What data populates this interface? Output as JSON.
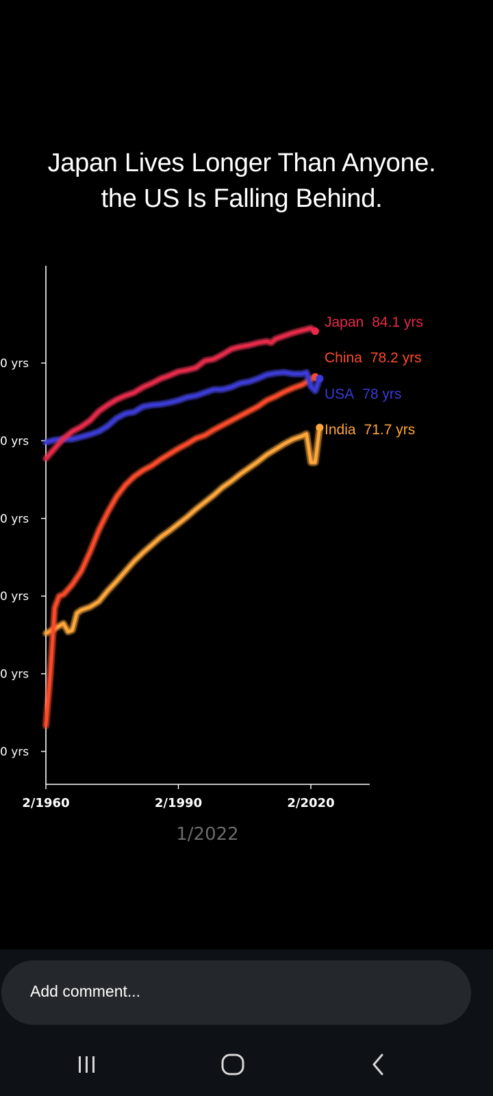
{
  "title": {
    "line1": "Japan Lives Longer Than Anyone.",
    "line2": "the US Is Falling Behind."
  },
  "date_stamp": "1/2022",
  "comment": {
    "placeholder": "Add comment..."
  },
  "nav": {
    "recents_icon": "recents-icon",
    "home_icon": "home-icon",
    "back_icon": "back-icon"
  },
  "chart_data": {
    "type": "line",
    "title": "Japan Lives Longer Than Anyone. the US Is Falling Behind.",
    "xlabel": "",
    "ylabel": "",
    "x_ticks": [
      {
        "value": 1960,
        "label": "2/1960"
      },
      {
        "value": 1990,
        "label": "2/1990"
      },
      {
        "value": 2020,
        "label": "2/2020"
      }
    ],
    "y_ticks": [
      {
        "value": 80,
        "label": "0 yrs"
      },
      {
        "value": 70,
        "label": "0 yrs"
      },
      {
        "value": 60,
        "label": "0 yrs"
      },
      {
        "value": 50,
        "label": "0 yrs"
      },
      {
        "value": 40,
        "label": "0 yrs"
      },
      {
        "value": 30,
        "label": "0 yrs"
      }
    ],
    "xlim": [
      1960,
      2032
    ],
    "ylim": [
      30,
      80
    ],
    "grid": false,
    "series": [
      {
        "name": "Japan",
        "value_label": "84.1 yrs",
        "color": "#e8294a",
        "glow": "#ff4466",
        "x": [
          1960,
          1962,
          1964,
          1966,
          1968,
          1970,
          1972,
          1974,
          1976,
          1978,
          1980,
          1982,
          1984,
          1986,
          1988,
          1990,
          1992,
          1994,
          1996,
          1998,
          2000,
          2002,
          2004,
          2006,
          2008,
          2010,
          2011,
          2012,
          2014,
          2016,
          2018,
          2020,
          2021
        ],
        "y": [
          67.7,
          69.0,
          70.3,
          71.2,
          71.8,
          72.6,
          73.8,
          74.6,
          75.3,
          75.8,
          76.2,
          76.9,
          77.4,
          78.0,
          78.4,
          78.9,
          79.1,
          79.4,
          80.3,
          80.5,
          81.1,
          81.8,
          82.1,
          82.3,
          82.6,
          82.8,
          82.6,
          83.1,
          83.5,
          83.9,
          84.2,
          84.5,
          84.1
        ]
      },
      {
        "name": "China",
        "value_label": "78.2 yrs",
        "color": "#ff4a2a",
        "glow": "#ff6a3a",
        "x": [
          1960,
          1961,
          1962,
          1963,
          1964,
          1966,
          1968,
          1970,
          1972,
          1974,
          1976,
          1978,
          1980,
          1982,
          1984,
          1986,
          1988,
          1990,
          1992,
          1994,
          1996,
          1998,
          2000,
          2002,
          2004,
          2006,
          2008,
          2010,
          2012,
          2014,
          2016,
          2018,
          2020,
          2021
        ],
        "y": [
          33.3,
          40.0,
          48.5,
          50.0,
          50.2,
          51.5,
          53.2,
          55.7,
          58.5,
          60.8,
          62.8,
          64.3,
          65.4,
          66.2,
          66.8,
          67.6,
          68.3,
          69.0,
          69.6,
          70.3,
          70.7,
          71.4,
          72.0,
          72.6,
          73.2,
          73.8,
          74.4,
          75.2,
          75.7,
          76.3,
          76.8,
          77.2,
          77.9,
          78.2
        ]
      },
      {
        "name": "USA",
        "value_label": "78 yrs",
        "color": "#3a3ad8",
        "glow": "#5a5aff",
        "x": [
          1960,
          1962,
          1964,
          1966,
          1968,
          1970,
          1972,
          1974,
          1976,
          1978,
          1980,
          1982,
          1984,
          1986,
          1988,
          1990,
          1992,
          1994,
          1996,
          1998,
          2000,
          2002,
          2004,
          2006,
          2008,
          2010,
          2012,
          2014,
          2016,
          2018,
          2019,
          2020,
          2021,
          2022
        ],
        "y": [
          69.8,
          70.1,
          70.2,
          70.2,
          70.5,
          70.8,
          71.2,
          71.9,
          72.9,
          73.5,
          73.7,
          74.4,
          74.6,
          74.7,
          74.9,
          75.2,
          75.6,
          75.8,
          76.2,
          76.6,
          76.6,
          76.9,
          77.4,
          77.6,
          78.0,
          78.5,
          78.7,
          78.8,
          78.6,
          78.6,
          78.8,
          77.0,
          76.4,
          78.0
        ]
      },
      {
        "name": "India",
        "value_label": "71.7 yrs",
        "color": "#ffa63a",
        "glow": "#ffb84a",
        "x": [
          1960,
          1962,
          1964,
          1965,
          1966,
          1967,
          1968,
          1970,
          1972,
          1974,
          1976,
          1978,
          1980,
          1982,
          1984,
          1986,
          1988,
          1990,
          1992,
          1994,
          1996,
          1998,
          2000,
          2002,
          2004,
          2006,
          2008,
          2010,
          2012,
          2014,
          2016,
          2018,
          2019,
          2020,
          2021,
          2022
        ],
        "y": [
          45.2,
          45.8,
          46.5,
          45.4,
          45.6,
          47.8,
          48.2,
          48.6,
          49.3,
          50.7,
          51.9,
          53.2,
          54.5,
          55.6,
          56.6,
          57.6,
          58.4,
          59.3,
          60.2,
          61.2,
          62.1,
          63.0,
          64.0,
          64.8,
          65.7,
          66.5,
          67.3,
          68.2,
          68.9,
          69.6,
          70.2,
          70.6,
          70.9,
          67.2,
          67.2,
          71.7
        ]
      }
    ]
  }
}
